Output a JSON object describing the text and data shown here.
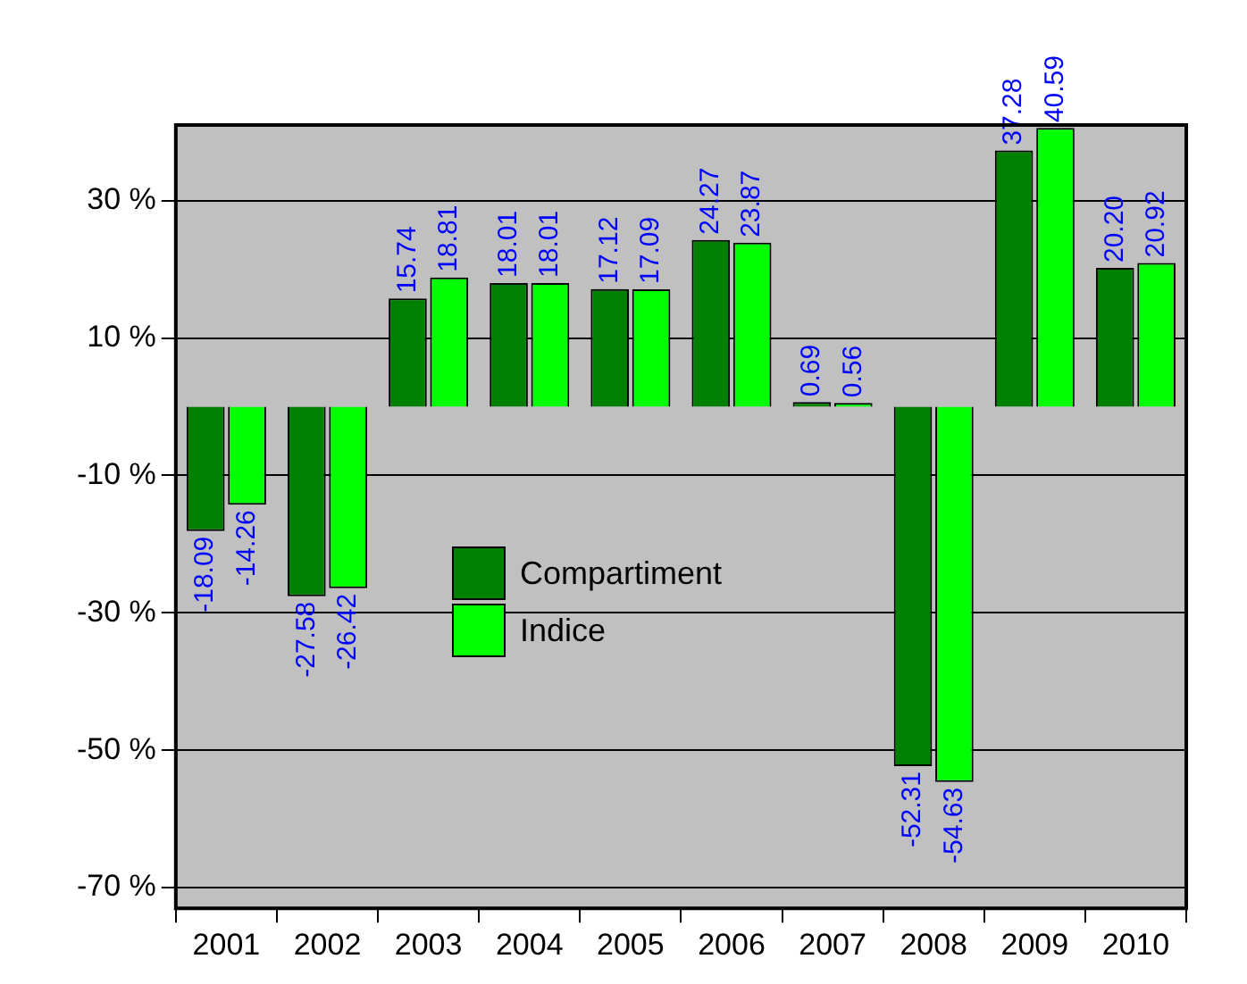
{
  "chart_data": {
    "type": "bar",
    "categories": [
      "2001",
      "2002",
      "2003",
      "2004",
      "2005",
      "2006",
      "2007",
      "2008",
      "2009",
      "2010"
    ],
    "series": [
      {
        "name": "Compartiment",
        "color": "#008000",
        "values": [
          -18.09,
          -27.58,
          15.74,
          18.01,
          17.12,
          24.27,
          0.69,
          -52.31,
          37.28,
          20.2
        ],
        "value_labels": [
          "-18.09",
          "-27.58",
          "15.74",
          "18.01",
          "17.12",
          "24.27",
          "0.69",
          "-52.31",
          "37.28",
          "20.20"
        ]
      },
      {
        "name": "Indice",
        "color": "#00ff00",
        "values": [
          -14.26,
          -26.42,
          18.81,
          18.01,
          17.09,
          23.87,
          0.56,
          -54.63,
          40.59,
          20.92
        ],
        "value_labels": [
          "-14.26",
          "-26.42",
          "18.81",
          "18.01",
          "17.09",
          "23.87",
          "0.56",
          "-54.63",
          "40.59",
          "20.92"
        ]
      }
    ],
    "ylim": [
      -73,
      41
    ],
    "yticks": [
      {
        "value": 30,
        "label": "30 %"
      },
      {
        "value": 10,
        "label": "10 %"
      },
      {
        "value": -10,
        "label": "-10 %"
      },
      {
        "value": -30,
        "label": "-30 %"
      },
      {
        "value": -50,
        "label": "-50 %"
      },
      {
        "value": -70,
        "label": "-70 %"
      }
    ],
    "grid": "y",
    "legend": "center"
  }
}
